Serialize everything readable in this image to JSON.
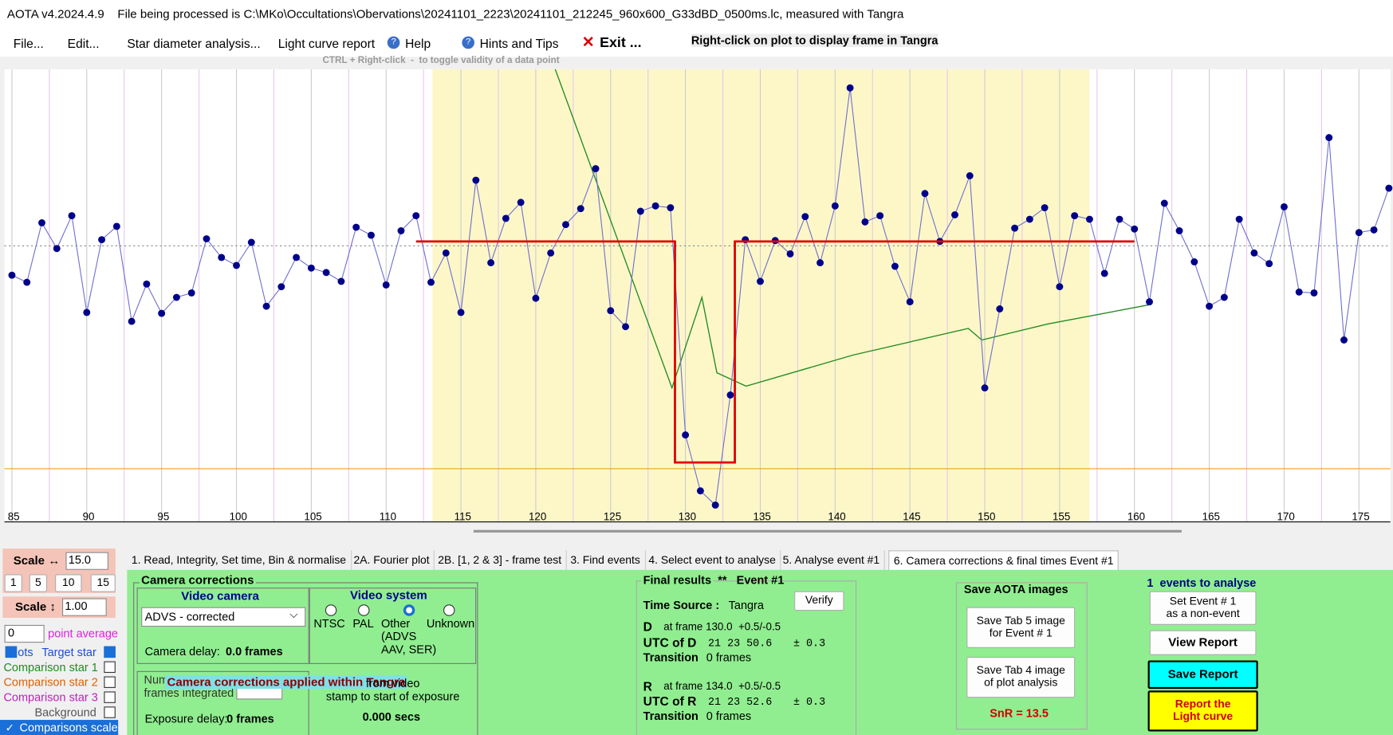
{
  "title_bar": "AOTA v4.2024.4.9    File being processed is C:\\MKo\\Occultations\\Obervations\\20241101_2223\\20241101_212245_960x600_G33dBD_0500ms.lc, measured with Tangra",
  "menu": [
    "File...",
    "Edit...",
    "Star diameter analysis...",
    "Light curve report",
    "Help",
    "Hints and Tips",
    "Exit ..."
  ],
  "right_click_hint": "Right-click on plot to display frame in Tangra",
  "ctrl_hint": "CTRL + Right-click  -  to toggle validity of a data point",
  "chart_data": {
    "type": "line",
    "x": [
      85,
      86,
      87,
      88,
      89,
      90,
      91,
      92,
      93,
      94,
      95,
      96,
      97,
      98,
      99,
      100,
      101,
      102,
      103,
      104,
      105,
      106,
      107,
      108,
      109,
      110,
      111,
      112,
      113,
      114,
      115,
      116,
      117,
      118,
      119,
      120,
      121,
      122,
      123,
      124,
      125,
      126,
      127,
      128,
      129,
      130,
      131,
      132,
      133,
      134,
      135,
      136,
      137,
      138,
      139,
      140,
      141,
      142,
      143,
      144,
      145,
      146,
      147,
      148,
      149,
      150,
      151,
      152,
      153,
      154,
      155,
      156,
      157,
      158,
      159,
      160,
      161,
      162,
      163,
      164,
      165,
      166,
      167,
      168,
      169,
      170,
      171,
      172,
      173,
      174,
      175,
      176,
      177
    ],
    "series": [
      {
        "name": "Target star",
        "color": "#00008b",
        "values": [
          218,
          210,
          277,
          248,
          285,
          176,
          258,
          273,
          166,
          208,
          175,
          193,
          198,
          259,
          238,
          229,
          255,
          183,
          205,
          238,
          226,
          221,
          211,
          272,
          263,
          207,
          268,
          285,
          210,
          243,
          176,
          325,
          232,
          282,
          300,
          192,
          243,
          275,
          293,
          338,
          178,
          160,
          290,
          296,
          294,
          38,
          -25,
          -41,
          83,
          258,
          211,
          257,
          242,
          284,
          232,
          296,
          429,
          278,
          285,
          228,
          188,
          310,
          256,
          286,
          330,
          91,
          180,
          271,
          281,
          294,
          205,
          285,
          281,
          220,
          281,
          270,
          188,
          299,
          268,
          233,
          183,
          193,
          281,
          243,
          231,
          295,
          199,
          198,
          373,
          145,
          266,
          269,
          316
        ]
      }
    ],
    "model": {
      "color": "#e00000",
      "x": [
        112,
        129.3,
        129.3,
        133.3,
        133.3,
        160
      ],
      "values": [
        256,
        256,
        7,
        7,
        256,
        256
      ]
    },
    "trend": {
      "color": "#228b22",
      "x": [
        121.3,
        129.1,
        131.1,
        132.1,
        134.05,
        141.2,
        148.9,
        149.8,
        154.2,
        161.1
      ],
      "values": [
        450,
        91,
        193,
        108,
        93,
        128,
        158,
        145,
        163,
        185
      ]
    },
    "highlight_range": [
      113.1,
      157
    ],
    "mean_level": 251,
    "baseline_level": 0,
    "xlim": [
      84.5,
      177.1
    ],
    "ylim": [
      -60,
      450
    ],
    "xticks": [
      85,
      90,
      95,
      100,
      105,
      110,
      115,
      120,
      125,
      130,
      135,
      140,
      145,
      150,
      155,
      160,
      165,
      170,
      175
    ],
    "xminor": [
      87.5,
      92.5,
      97.5,
      102.5,
      107.5,
      112.5,
      117.5,
      122.5,
      127.5,
      132.5,
      137.5,
      142.5,
      147.5,
      152.5,
      157.5,
      162.5,
      167.5,
      172.5,
      177.5
    ],
    "grid": true
  },
  "tabs": [
    "1.  Read, Integrity, Set time, Bin & normalise",
    "2A. Fourier plot",
    "2B. [1, 2 & 3] - frame test",
    "3. Find events",
    "4. Select event to analyse",
    "5. Analyse event #1",
    "6. Camera corrections & final times Event #1"
  ],
  "left": {
    "scale_h": "Scale ↔",
    "scale_h_value": "15.0",
    "scale_buttons": [
      "1",
      "5",
      "10",
      "15"
    ],
    "scale_v": "Scale ↕",
    "scale_v_value": "1.00",
    "avg_value": "0",
    "avg_label": "point average",
    "dots": "ots",
    "target": "Target star",
    "comp1": "Comparison star 1",
    "comp2": "Comparison star 2",
    "comp3": "Comparison star 3",
    "background": "Background",
    "scaled": "Comparisons scaled"
  },
  "camera": {
    "group": "Camera corrections",
    "video_camera": "Video camera",
    "camera_select": "ADVS - corrected",
    "delay_label": "Camera delay:",
    "delay_value": "0.0 frames",
    "video_system": "Video system",
    "radios": [
      "NTSC",
      "PAL",
      "Other",
      "Unknown"
    ],
    "other_note": "(ADVS\nAAV, SER)",
    "num_frames": "Num\nframes integrated",
    "overlay": "Camera corrections applied within Tangra",
    "stamp_note": "from video\nstamp to start of exposure",
    "secs": "0.000 secs",
    "exposure_label": "Exposure delay:",
    "exposure_value": "0 frames"
  },
  "final": {
    "title": "Final results",
    "stars": "**",
    "event": "Event #1",
    "verify": "Verify",
    "time_source_label": "Time Source :",
    "time_source": "Tangra",
    "d_label": "D",
    "d_frame": "at frame 130.0  +0.5/-0.5",
    "utc_d_label": "UTC of D",
    "utc_d": "21 23 50.6",
    "utc_d_err": "± 0.3",
    "trans_label_d": "Transition",
    "trans_d": "0 frames",
    "r_label": "R",
    "r_frame": "at frame 134.0  +0.5/-0.5",
    "utc_r_label": "UTC of R",
    "utc_r": "21 23 52.6",
    "utc_r_err": "± 0.3",
    "trans_label_r": "Transition",
    "trans_r": "0 frames"
  },
  "save": {
    "title": "Save AOTA images",
    "tab5": "Save Tab 5 image\nfor Event # 1",
    "tab4": "Save Tab 4 image\nof plot analysis",
    "snr": "SnR = 13.5"
  },
  "right": {
    "events": "1  events to analyse",
    "non_event": "Set Event # 1\nas a non-event",
    "view": "View Report",
    "save": "Save Report",
    "report": "Report the\nLight curve"
  }
}
